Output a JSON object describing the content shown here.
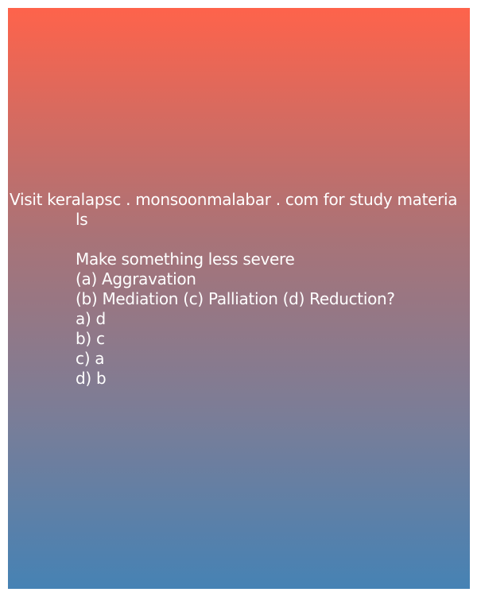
{
  "header": {
    "line1": "Visit keralapsc . monsoonmalabar . com for study materia",
    "line2": "ls"
  },
  "question": {
    "text": " Make something less severe",
    "options_line1": "(a) Aggravation",
    "options_line2": "(b) Mediation (c) Palliation (d) Reduction?"
  },
  "answers": [
    "a) d",
    "b) c",
    "c) a",
    "d) b"
  ],
  "colors": {
    "gradient_top": "#fe634b",
    "gradient_bottom": "#4682b4",
    "text": "#ffffff"
  }
}
